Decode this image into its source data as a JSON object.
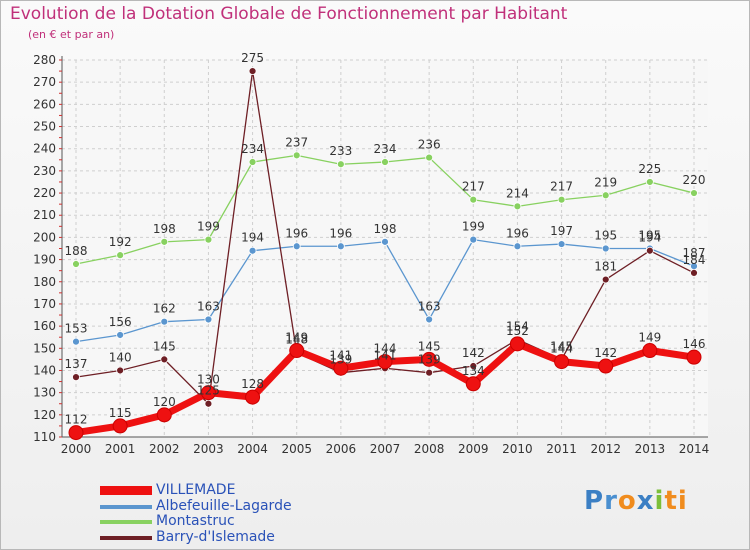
{
  "chart_data": {
    "type": "line",
    "title": "Evolution de la Dotation Globale de Fonctionnement par Habitant",
    "subtitle": "(en € et par an)",
    "xlabel": "",
    "ylabel": "",
    "ylim": [
      110,
      280
    ],
    "ytick_step": 10,
    "grid": true,
    "categories": [
      "2000",
      "2001",
      "2002",
      "2003",
      "2004",
      "2005",
      "2006",
      "2007",
      "2008",
      "2009",
      "2010",
      "2011",
      "2012",
      "2013",
      "2014"
    ],
    "series": [
      {
        "name": "VILLEMADE",
        "color": "#ee1111",
        "values": [
          112,
          115,
          120,
          130,
          128,
          149,
          141,
          144,
          145,
          134,
          152,
          144,
          142,
          149,
          146
        ],
        "labels": [
          "112",
          "115",
          "120",
          "130",
          "128",
          "149",
          "141",
          "144",
          "145",
          "134",
          "152",
          "144",
          "142",
          "149",
          "146"
        ]
      },
      {
        "name": "Albefeuille-Lagarde",
        "color": "#5b96cf",
        "values": [
          153,
          156,
          162,
          163,
          194,
          196,
          196,
          198,
          163,
          199,
          196,
          197,
          195,
          195,
          187
        ],
        "labels": [
          "153",
          "156",
          "162",
          "163",
          "194",
          "196",
          "196",
          "198",
          "163",
          "199",
          "196",
          "197",
          "195",
          "195",
          "187"
        ]
      },
      {
        "name": "Montastruc",
        "color": "#88d160",
        "values": [
          188,
          192,
          198,
          199,
          234,
          237,
          233,
          234,
          236,
          217,
          214,
          217,
          219,
          225,
          220
        ],
        "labels": [
          "188",
          "192",
          "198",
          "199",
          "234",
          "237",
          "233",
          "234",
          "236",
          "217",
          "214",
          "217",
          "219",
          "225",
          "220"
        ]
      },
      {
        "name": "Barry-d'Islemade",
        "color": "#6e1f25",
        "values": [
          137,
          140,
          145,
          125,
          275,
          148,
          139,
          141,
          139,
          142,
          154,
          145,
          181,
          194,
          184
        ],
        "labels": [
          "137",
          "140",
          "145",
          "125",
          "275",
          "148",
          "139",
          "141",
          "139",
          "142",
          "154",
          "145",
          "181",
          "194",
          "184"
        ]
      }
    ]
  },
  "legend": {
    "items": [
      {
        "name": "VILLEMADE",
        "color": "#ee1111"
      },
      {
        "name": "Albefeuille-Lagarde",
        "color": "#5b96cf"
      },
      {
        "name": "Montastruc",
        "color": "#88d160"
      },
      {
        "name": "Barry-d'Islemade",
        "color": "#6e1f25"
      }
    ]
  },
  "brand": {
    "p": "P",
    "r": "r",
    "o": "o",
    "x": "x",
    "i": "i",
    "t": "ti"
  }
}
